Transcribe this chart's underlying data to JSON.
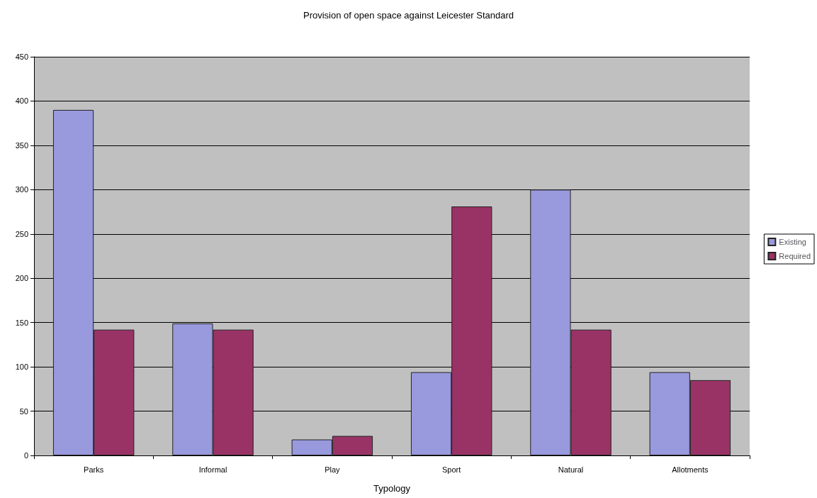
{
  "chart_data": {
    "type": "bar",
    "title": "Provision of open space against Leicester Standard",
    "xlabel": "Typology",
    "categories": [
      "Parks",
      "Informal",
      "Play",
      "Sport",
      "Natural",
      "Allotments"
    ],
    "series": [
      {
        "name": "Existing",
        "color": "#9999dd",
        "values": [
          390,
          149,
          18,
          94,
          300,
          94
        ]
      },
      {
        "name": "Required",
        "color": "#993366",
        "values": [
          142,
          142,
          22,
          281,
          142,
          85
        ]
      }
    ],
    "ylim": [
      0,
      450
    ],
    "yticks": [
      0,
      50,
      100,
      150,
      200,
      250,
      300,
      350,
      400,
      450
    ],
    "grid": "y",
    "legend": "right"
  }
}
